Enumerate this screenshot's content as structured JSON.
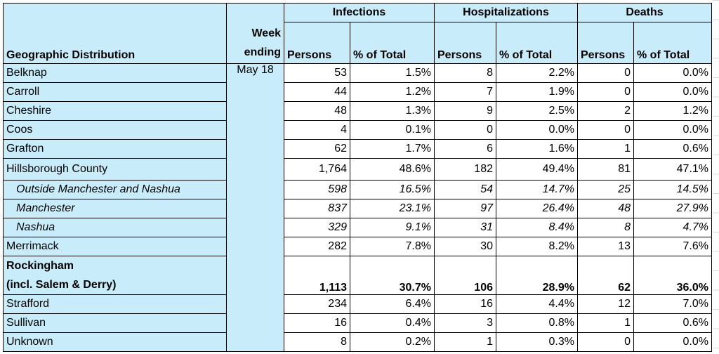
{
  "headers": {
    "geo": "Geographic Distribution",
    "week_line1": "Week",
    "week_line2": "ending",
    "infections": "Infections",
    "hospitalizations": "Hospitalizations",
    "deaths": "Deaths",
    "persons": "Persons",
    "pct": "% of Total"
  },
  "week_value": "May 18",
  "rows": [
    {
      "name": "Belknap",
      "inf": "53",
      "inf_pct": "1.5%",
      "hosp": "8",
      "hosp_pct": "2.2%",
      "death": "0",
      "death_pct": "0.0%"
    },
    {
      "name": "Carroll",
      "inf": "44",
      "inf_pct": "1.2%",
      "hosp": "7",
      "hosp_pct": "1.9%",
      "death": "0",
      "death_pct": "0.0%"
    },
    {
      "name": "Cheshire",
      "inf": "48",
      "inf_pct": "1.3%",
      "hosp": "9",
      "hosp_pct": "2.5%",
      "death": "2",
      "death_pct": "1.2%"
    },
    {
      "name": "Coos",
      "inf": "4",
      "inf_pct": "0.1%",
      "hosp": "0",
      "hosp_pct": "0.0%",
      "death": "0",
      "death_pct": "0.0%"
    },
    {
      "name": "Grafton",
      "inf": "62",
      "inf_pct": "1.7%",
      "hosp": "6",
      "hosp_pct": "1.6%",
      "death": "1",
      "death_pct": "0.6%"
    },
    {
      "name": "Hillsborough County",
      "inf": "1,764",
      "inf_pct": "48.6%",
      "hosp": "182",
      "hosp_pct": "49.4%",
      "death": "81",
      "death_pct": "47.1%"
    },
    {
      "name": "Outside Manchester and Nashua",
      "inf": "598",
      "inf_pct": "16.5%",
      "hosp": "54",
      "hosp_pct": "14.7%",
      "death": "25",
      "death_pct": "14.5%"
    },
    {
      "name": "Manchester",
      "inf": "837",
      "inf_pct": "23.1%",
      "hosp": "97",
      "hosp_pct": "26.4%",
      "death": "48",
      "death_pct": "27.9%"
    },
    {
      "name": "Nashua",
      "inf": "329",
      "inf_pct": "9.1%",
      "hosp": "31",
      "hosp_pct": "8.4%",
      "death": "8",
      "death_pct": "4.7%"
    },
    {
      "name": "Merrimack",
      "inf": "282",
      "inf_pct": "7.8%",
      "hosp": "30",
      "hosp_pct": "8.2%",
      "death": "13",
      "death_pct": "7.6%"
    },
    {
      "name_line1": "Rockingham",
      "name_line2": "(incl. Salem & Derry)",
      "inf": "1,113",
      "inf_pct": "30.7%",
      "hosp": "106",
      "hosp_pct": "28.9%",
      "death": "62",
      "death_pct": "36.0%"
    },
    {
      "name": "Strafford",
      "inf": "234",
      "inf_pct": "6.4%",
      "hosp": "16",
      "hosp_pct": "4.4%",
      "death": "12",
      "death_pct": "7.0%"
    },
    {
      "name": "Sullivan",
      "inf": "16",
      "inf_pct": "0.4%",
      "hosp": "3",
      "hosp_pct": "0.8%",
      "death": "1",
      "death_pct": "0.6%"
    },
    {
      "name": "Unknown",
      "inf": "8",
      "inf_pct": "0.2%",
      "hosp": "1",
      "hosp_pct": "0.3%",
      "death": "0",
      "death_pct": "0.0%"
    }
  ]
}
